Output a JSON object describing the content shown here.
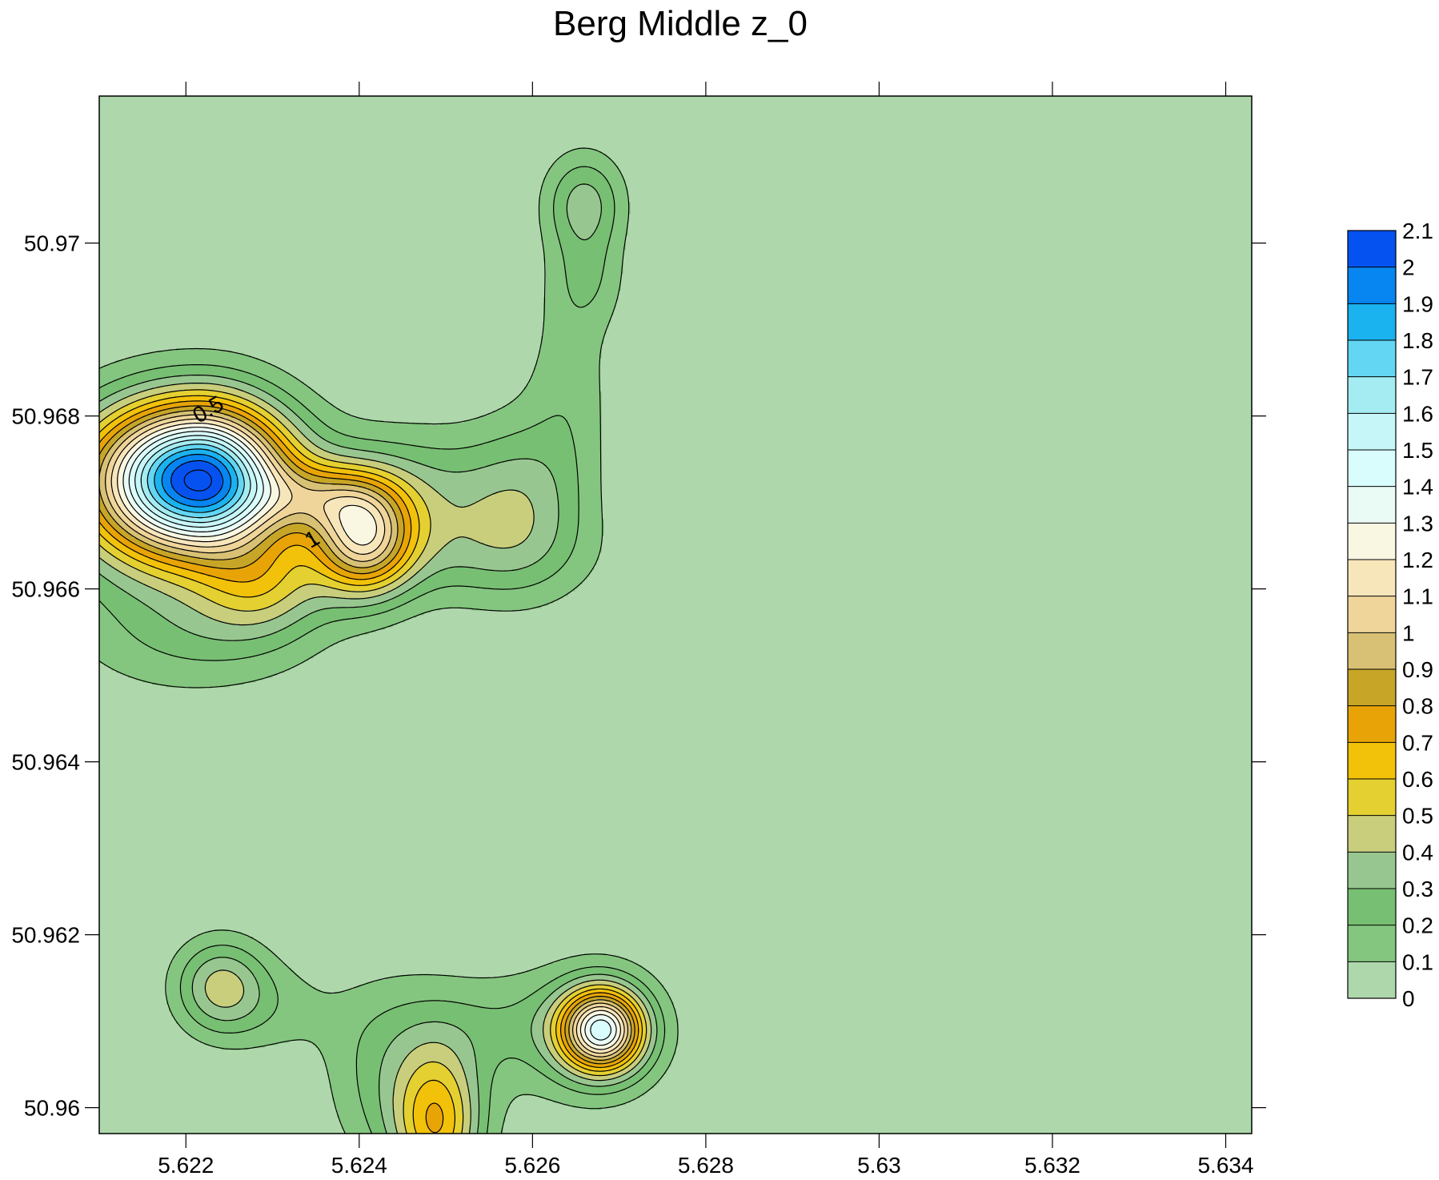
{
  "chart_data": {
    "type": "contour",
    "title": "Berg Middle z_0",
    "xlabel": "",
    "ylabel": "",
    "xlim": [
      5.621,
      5.6343
    ],
    "ylim": [
      50.9597,
      50.9717
    ],
    "x_ticks": [
      "5.622",
      "5.624",
      "5.626",
      "5.628",
      "5.63",
      "5.632",
      "5.634"
    ],
    "y_ticks": [
      "50.96",
      "50.962",
      "50.964",
      "50.966",
      "50.968",
      "50.97"
    ],
    "colorbar": {
      "levels": [
        0,
        0.1,
        0.2,
        0.3,
        0.4,
        0.5,
        0.6,
        0.7,
        0.8,
        0.9,
        1,
        1.1,
        1.2,
        1.3,
        1.4,
        1.5,
        1.6,
        1.7,
        1.8,
        1.9,
        2,
        2.1
      ],
      "labels": [
        "0",
        "0.1",
        "0.2",
        "0.3",
        "0.4",
        "0.5",
        "0.6",
        "0.7",
        "0.8",
        "0.9",
        "1",
        "1.1",
        "1.2",
        "1.3",
        "1.4",
        "1.5",
        "1.6",
        "1.7",
        "1.8",
        "1.9",
        "2",
        "2.1"
      ],
      "colors": [
        "#aed8ab",
        "#84c67f",
        "#77bf72",
        "#98c690",
        "#c8ce7c",
        "#e4d030",
        "#f2c10a",
        "#e8a407",
        "#c7a527",
        "#d8c174",
        "#efd59a",
        "#f8e6bb",
        "#f9f6e2",
        "#eafaf4",
        "#d9fcfc",
        "#c6f6f8",
        "#a4ecf2",
        "#62d6f2",
        "#1ab2ef",
        "#0785f0",
        "#0552f0"
      ]
    },
    "contour_labels": [
      {
        "text": "0.5",
        "x": 5.6223,
        "y": 50.968
      },
      {
        "text": "1",
        "x": 5.6235,
        "y": 50.9665
      }
    ],
    "peaks": [
      {
        "x": 5.62215,
        "y": 50.96728,
        "z": 2.0,
        "sx": 0.00085,
        "sy": 0.0006,
        "sx2": 0.0007
      },
      {
        "x": 5.62405,
        "y": 50.96658,
        "z": 0.95,
        "sx": 0.0004,
        "sy": 0.00045
      },
      {
        "x": 5.62355,
        "y": 50.96705,
        "z": 0.4,
        "sx": 0.0005,
        "sy": 0.00028
      },
      {
        "x": 5.6229,
        "y": 50.96605,
        "z": 0.35,
        "sx": 0.0005,
        "sy": 0.0004
      },
      {
        "x": 5.62185,
        "y": 50.9664,
        "z": 0.2,
        "sx": 0.0011,
        "sy": 0.001
      },
      {
        "x": 5.6223,
        "y": 50.96545,
        "z": 0.12,
        "sx": 0.00085,
        "sy": 0.0004
      },
      {
        "x": 5.6245,
        "y": 50.9672,
        "z": 0.18,
        "sx": 0.00075,
        "sy": 0.0005
      },
      {
        "x": 5.6252,
        "y": 50.9668,
        "z": 0.18,
        "sx": 0.0008,
        "sy": 0.0006
      },
      {
        "x": 5.6259,
        "y": 50.96705,
        "z": 0.22,
        "sx": 0.00045,
        "sy": 0.0007
      },
      {
        "x": 5.62535,
        "y": 50.96638,
        "z": 0.12,
        "sx": 0.001,
        "sy": 0.0004
      },
      {
        "x": 5.62643,
        "y": 50.9684,
        "z": 0.15,
        "sx": 0.00035,
        "sy": 0.001
      },
      {
        "x": 5.6266,
        "y": 50.97047,
        "z": 0.33,
        "sx": 0.00032,
        "sy": 0.0004
      },
      {
        "x": 5.62665,
        "y": 50.9696,
        "z": 0.15,
        "sx": 0.0003,
        "sy": 0.0004
      },
      {
        "x": 5.6224,
        "y": 50.9614,
        "z": 0.42,
        "sx": 0.00037,
        "sy": 0.00038
      },
      {
        "x": 5.62305,
        "y": 50.96115,
        "z": 0.12,
        "sx": 0.0005,
        "sy": 0.0004
      },
      {
        "x": 5.6249,
        "y": 50.9598,
        "z": 0.6,
        "sx": 0.00035,
        "sy": 0.0006
      },
      {
        "x": 5.6246,
        "y": 50.9604,
        "z": 0.15,
        "sx": 0.0006,
        "sy": 0.0008
      },
      {
        "x": 5.62545,
        "y": 50.96095,
        "z": 0.12,
        "sx": 0.0008,
        "sy": 0.0004
      },
      {
        "x": 5.62415,
        "y": 50.96035,
        "z": 0.1,
        "sx": 0.0004,
        "sy": 0.0007
      },
      {
        "x": 5.6268,
        "y": 50.9609,
        "z": 1.26,
        "sx": 0.00033,
        "sy": 0.00033
      },
      {
        "x": 5.6266,
        "y": 50.96085,
        "z": 0.2,
        "sx": 0.0007,
        "sy": 0.0006
      }
    ]
  }
}
